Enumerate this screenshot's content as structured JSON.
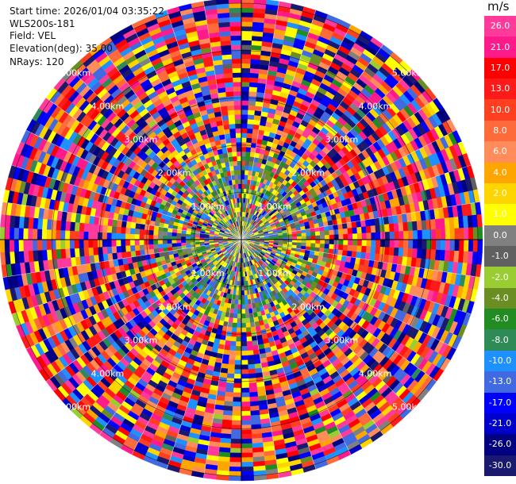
{
  "header": {
    "start_time": "Start time: 2026/01/04 03:35:22",
    "station": "WLS200s-181",
    "field": "Field: VEL",
    "elevation": "Elevation(deg): 35.00",
    "nrays": "NRays: 120"
  },
  "colorbar": {
    "unit": "m/s",
    "ticks": [
      "26.0",
      "21.0",
      "17.0",
      "13.0",
      "10.0",
      "8.0",
      "6.0",
      "4.0",
      "2.0",
      "1.0",
      "0.0",
      "-1.0",
      "-2.0",
      "-4.0",
      "-6.0",
      "-8.0",
      "-10.0",
      "-13.0",
      "-17.0",
      "-21.0",
      "-26.0",
      "-30.0"
    ],
    "colors": [
      "#ff3a9a",
      "#ff1a8c",
      "#ff0000",
      "#ff1a1a",
      "#ff4020",
      "#ff6a3a",
      "#ff8c5a",
      "#ffa500",
      "#ffd500",
      "#ffff00",
      "#808080",
      "#606060",
      "#9acd32",
      "#6b8e23",
      "#228b22",
      "#2e8b57",
      "#1e90ff",
      "#4169e1",
      "#0000ff",
      "#0000cd",
      "#000080",
      "#191970"
    ]
  },
  "chart_data": {
    "type": "heatmap",
    "projection": "polar",
    "field": "VEL",
    "elevation_deg": 35.0,
    "n_rays": 120,
    "unit": "m/s",
    "range_rings_km": [
      1.0,
      2.0,
      3.0,
      4.0,
      5.0
    ],
    "ring_labels": [
      "1.00km",
      "2.00km",
      "3.00km",
      "4.00km",
      "5.00km"
    ],
    "max_range_km": 5.1,
    "value_range": [
      -30.0,
      30.0
    ],
    "grid": true
  }
}
